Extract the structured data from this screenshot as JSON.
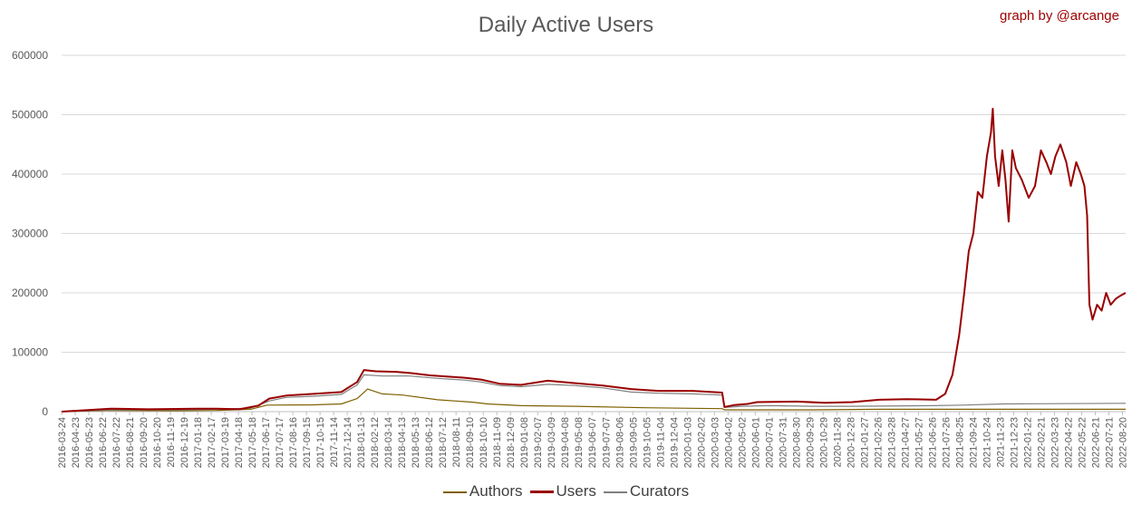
{
  "header": {
    "title": "Daily Active Users",
    "credit": "graph by @arcange"
  },
  "chart_data": {
    "type": "line",
    "title": "Daily Active Users",
    "xlabel": "",
    "ylabel": "",
    "ylim": [
      0,
      600000
    ],
    "y_ticks": [
      0,
      100000,
      200000,
      300000,
      400000,
      500000,
      600000
    ],
    "x_range": [
      "2016-03-24",
      "2022-08-27"
    ],
    "x_tick_labels": [
      "2016-03-24",
      "2016-04-23",
      "2016-05-23",
      "2016-06-22",
      "2016-07-22",
      "2016-08-21",
      "2016-09-20",
      "2016-10-20",
      "2016-11-19",
      "2016-12-19",
      "2017-01-18",
      "2017-02-17",
      "2017-03-19",
      "2017-04-18",
      "2017-05-18",
      "2017-06-17",
      "2017-07-17",
      "2017-08-16",
      "2017-09-15",
      "2017-10-15",
      "2017-11-14",
      "2017-12-14",
      "2018-01-13",
      "2018-02-12",
      "2018-03-14",
      "2018-04-13",
      "2018-05-13",
      "2018-06-12",
      "2018-07-12",
      "2018-08-11",
      "2018-09-10",
      "2018-10-10",
      "2018-11-09",
      "2018-12-09",
      "2019-01-08",
      "2019-02-07",
      "2019-03-09",
      "2019-04-08",
      "2019-05-08",
      "2019-06-07",
      "2019-07-07",
      "2019-08-06",
      "2019-09-05",
      "2019-10-05",
      "2019-11-04",
      "2019-12-04",
      "2020-01-03",
      "2020-02-02",
      "2020-03-03",
      "2020-04-02",
      "2020-05-02",
      "2020-06-01",
      "2020-07-01",
      "2020-07-31",
      "2020-08-30",
      "2020-09-29",
      "2020-10-29",
      "2020-11-28",
      "2020-12-28",
      "2021-01-27",
      "2021-02-26",
      "2021-03-28",
      "2021-04-27",
      "2021-05-27",
      "2021-06-26",
      "2021-07-26",
      "2021-08-25",
      "2021-09-24",
      "2021-10-24",
      "2021-11-23",
      "2021-12-23",
      "2022-01-22",
      "2022-02-21",
      "2022-03-23",
      "2022-04-22",
      "2022-05-22",
      "2022-06-21",
      "2022-07-21",
      "2022-08-20"
    ],
    "grid": true,
    "legend_position": "bottom",
    "series": [
      {
        "name": "Authors",
        "color": "#7f6000",
        "points": [
          [
            "2016-03-24",
            0
          ],
          [
            "2016-07-10",
            2000
          ],
          [
            "2016-12-01",
            1500
          ],
          [
            "2017-03-01",
            2000
          ],
          [
            "2017-05-15",
            4000
          ],
          [
            "2017-06-20",
            11000
          ],
          [
            "2017-10-01",
            11500
          ],
          [
            "2017-12-01",
            13000
          ],
          [
            "2018-01-05",
            22000
          ],
          [
            "2018-01-28",
            38000
          ],
          [
            "2018-03-01",
            30000
          ],
          [
            "2018-04-15",
            28000
          ],
          [
            "2018-07-01",
            20000
          ],
          [
            "2018-09-15",
            16000
          ],
          [
            "2018-10-20",
            13000
          ],
          [
            "2019-01-01",
            10000
          ],
          [
            "2019-05-01",
            9000
          ],
          [
            "2019-10-01",
            6500
          ],
          [
            "2020-03-20",
            5000
          ],
          [
            "2020-03-25",
            3000
          ],
          [
            "2020-10-01",
            3000
          ],
          [
            "2021-03-01",
            4000
          ],
          [
            "2022-08-27",
            4000
          ]
        ]
      },
      {
        "name": "Users",
        "color": "#990000",
        "points": [
          [
            "2016-03-24",
            0
          ],
          [
            "2016-07-10",
            5000
          ],
          [
            "2016-10-01",
            4000
          ],
          [
            "2017-01-15",
            5000
          ],
          [
            "2017-03-01",
            5000
          ],
          [
            "2017-04-20",
            4000
          ],
          [
            "2017-06-01",
            10000
          ],
          [
            "2017-06-25",
            22000
          ],
          [
            "2017-08-01",
            27000
          ],
          [
            "2017-10-01",
            30000
          ],
          [
            "2017-12-01",
            33000
          ],
          [
            "2018-01-05",
            50000
          ],
          [
            "2018-01-20",
            70000
          ],
          [
            "2018-02-15",
            68000
          ],
          [
            "2018-04-01",
            67000
          ],
          [
            "2018-05-01",
            65000
          ],
          [
            "2018-06-15",
            61000
          ],
          [
            "2018-09-01",
            57000
          ],
          [
            "2018-10-05",
            54000
          ],
          [
            "2018-11-15",
            47000
          ],
          [
            "2019-01-01",
            45000
          ],
          [
            "2019-03-01",
            52000
          ],
          [
            "2019-05-01",
            48000
          ],
          [
            "2019-07-01",
            44000
          ],
          [
            "2019-09-01",
            38000
          ],
          [
            "2019-11-01",
            35000
          ],
          [
            "2020-01-15",
            35000
          ],
          [
            "2020-03-20",
            32000
          ],
          [
            "2020-03-25",
            8000
          ],
          [
            "2020-04-15",
            11000
          ],
          [
            "2020-05-15",
            13000
          ],
          [
            "2020-06-05",
            16000
          ],
          [
            "2020-09-01",
            17000
          ],
          [
            "2020-11-01",
            15000
          ],
          [
            "2021-01-01",
            16000
          ],
          [
            "2021-03-01",
            20000
          ],
          [
            "2021-05-01",
            21000
          ],
          [
            "2021-07-05",
            20000
          ],
          [
            "2021-07-25",
            30000
          ],
          [
            "2021-08-10",
            62000
          ],
          [
            "2021-08-25",
            130000
          ],
          [
            "2021-09-05",
            200000
          ],
          [
            "2021-09-15",
            270000
          ],
          [
            "2021-09-25",
            300000
          ],
          [
            "2021-10-05",
            370000
          ],
          [
            "2021-10-15",
            360000
          ],
          [
            "2021-10-25",
            430000
          ],
          [
            "2021-11-03",
            470000
          ],
          [
            "2021-11-07",
            510000
          ],
          [
            "2021-11-12",
            430000
          ],
          [
            "2021-11-20",
            380000
          ],
          [
            "2021-11-28",
            440000
          ],
          [
            "2021-12-05",
            390000
          ],
          [
            "2021-12-12",
            320000
          ],
          [
            "2021-12-20",
            440000
          ],
          [
            "2021-12-28",
            410000
          ],
          [
            "2022-01-10",
            390000
          ],
          [
            "2022-01-25",
            360000
          ],
          [
            "2022-02-08",
            380000
          ],
          [
            "2022-02-21",
            440000
          ],
          [
            "2022-03-05",
            420000
          ],
          [
            "2022-03-15",
            400000
          ],
          [
            "2022-03-25",
            430000
          ],
          [
            "2022-04-05",
            450000
          ],
          [
            "2022-04-18",
            420000
          ],
          [
            "2022-04-28",
            380000
          ],
          [
            "2022-05-10",
            420000
          ],
          [
            "2022-05-20",
            400000
          ],
          [
            "2022-05-28",
            380000
          ],
          [
            "2022-06-03",
            330000
          ],
          [
            "2022-06-08",
            180000
          ],
          [
            "2022-06-15",
            155000
          ],
          [
            "2022-06-25",
            180000
          ],
          [
            "2022-07-05",
            170000
          ],
          [
            "2022-07-15",
            200000
          ],
          [
            "2022-07-25",
            180000
          ],
          [
            "2022-08-05",
            190000
          ],
          [
            "2022-08-15",
            195000
          ],
          [
            "2022-08-27",
            200000
          ]
        ]
      },
      {
        "name": "Curators",
        "color": "#7f7f7f",
        "points": [
          [
            "2016-03-24",
            0
          ],
          [
            "2016-07-10",
            3000
          ],
          [
            "2016-12-01",
            3000
          ],
          [
            "2017-03-01",
            4000
          ],
          [
            "2017-05-15",
            6000
          ],
          [
            "2017-06-25",
            18000
          ],
          [
            "2017-08-01",
            24000
          ],
          [
            "2017-10-01",
            26000
          ],
          [
            "2017-12-01",
            29000
          ],
          [
            "2018-01-05",
            45000
          ],
          [
            "2018-01-20",
            62000
          ],
          [
            "2018-03-01",
            60000
          ],
          [
            "2018-05-01",
            60000
          ],
          [
            "2018-07-01",
            56000
          ],
          [
            "2018-09-01",
            53000
          ],
          [
            "2018-10-05",
            50000
          ],
          [
            "2018-11-15",
            44000
          ],
          [
            "2019-01-01",
            42000
          ],
          [
            "2019-03-01",
            46000
          ],
          [
            "2019-05-01",
            44000
          ],
          [
            "2019-07-01",
            40000
          ],
          [
            "2019-09-01",
            33000
          ],
          [
            "2019-11-01",
            31000
          ],
          [
            "2020-01-15",
            30000
          ],
          [
            "2020-03-20",
            28000
          ],
          [
            "2020-03-25",
            7000
          ],
          [
            "2020-05-01",
            9000
          ],
          [
            "2020-07-01",
            10000
          ],
          [
            "2020-10-01",
            9000
          ],
          [
            "2021-01-01",
            9000
          ],
          [
            "2021-07-01",
            10000
          ],
          [
            "2021-09-01",
            11000
          ],
          [
            "2021-12-01",
            13000
          ],
          [
            "2022-08-27",
            14000
          ]
        ]
      }
    ]
  }
}
